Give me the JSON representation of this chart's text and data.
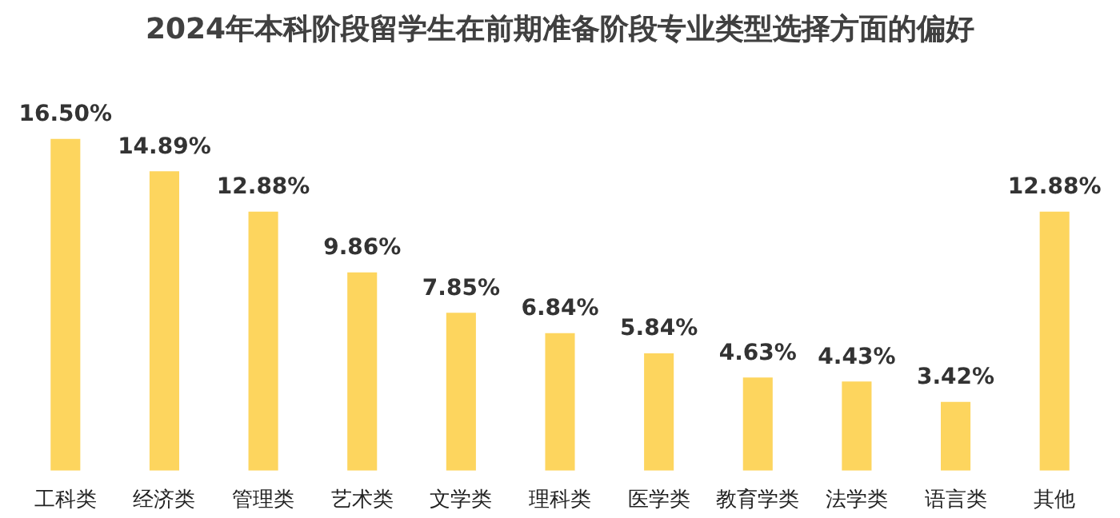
{
  "chart_data": {
    "type": "bar",
    "title": "2024年本科阶段留学生在前期准备阶段专业类型选择方面的偏好",
    "categories": [
      "工科类",
      "经济类",
      "管理类",
      "艺术类",
      "文学类",
      "理科类",
      "医学类",
      "教育学类",
      "法学类",
      "语言类",
      "其他"
    ],
    "values": [
      16.5,
      14.89,
      12.88,
      9.86,
      7.85,
      6.84,
      5.84,
      4.63,
      4.43,
      3.42,
      12.88
    ],
    "value_labels": [
      "16.50%",
      "14.89%",
      "12.88%",
      "9.86%",
      "7.85%",
      "6.84%",
      "5.84%",
      "4.63%",
      "4.43%",
      "3.42%",
      "12.88%"
    ],
    "color": "#fdd55e",
    "grid": false,
    "legend": false,
    "tick_labels": "x"
  }
}
